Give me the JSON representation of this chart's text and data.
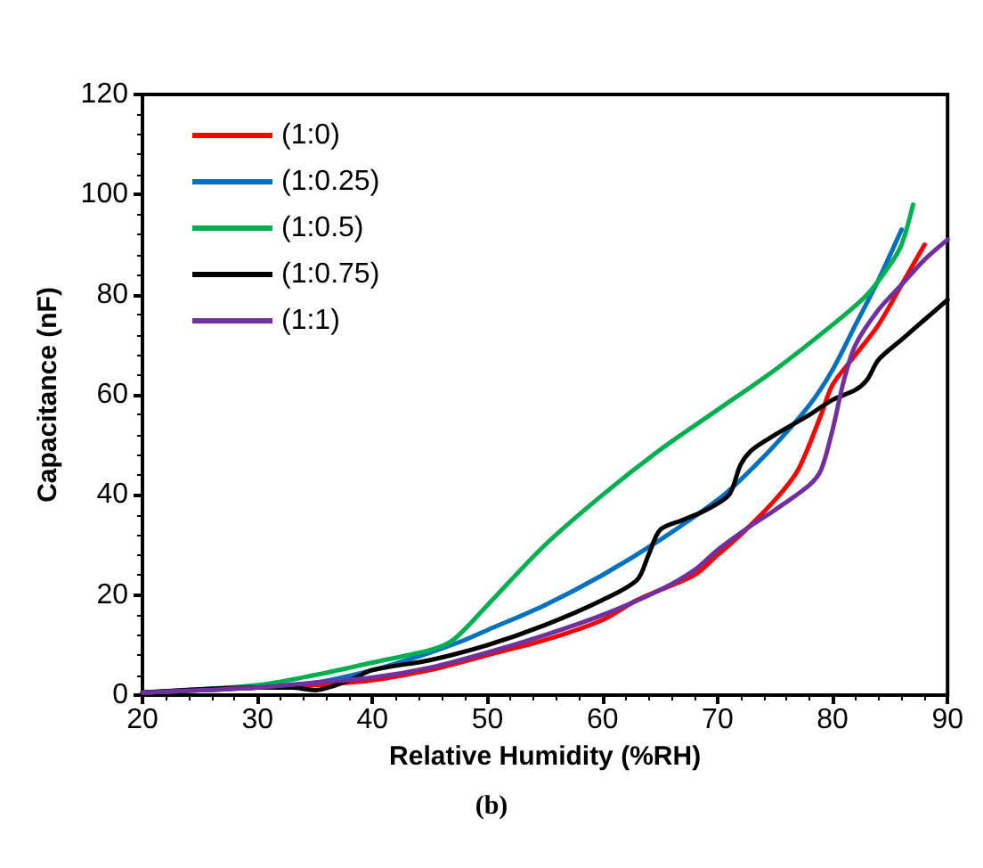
{
  "chart_data": {
    "type": "line",
    "xlabel": "Relative Humidity (%RH)",
    "ylabel": "Capacitance (nF)",
    "annotations": [
      "(b)"
    ],
    "xlim": [
      20,
      90
    ],
    "xticks": [
      20,
      30,
      40,
      50,
      60,
      70,
      80,
      90
    ],
    "ylim": [
      0,
      120
    ],
    "yticks": [
      0,
      20,
      40,
      60,
      80,
      100,
      120
    ],
    "grid": false,
    "legend": "top left",
    "line_style": "solid",
    "marker": "none",
    "series": [
      {
        "name": "(1:0)",
        "color": "#ff0000",
        "x": [
          20,
          30,
          35,
          40,
          45,
          50,
          55,
          60,
          63,
          65,
          68,
          70,
          72,
          75,
          77,
          79,
          80,
          82,
          84,
          86,
          88
        ],
        "values": [
          0.5,
          1.5,
          2,
          3,
          5,
          8,
          11,
          15,
          19,
          21,
          24,
          28,
          32,
          39,
          45,
          56,
          62,
          68,
          74,
          82,
          90
        ]
      },
      {
        "name": "(1:0.25)",
        "color": "#0070c0",
        "x": [
          20,
          30,
          35,
          40,
          45,
          48,
          50,
          55,
          60,
          65,
          70,
          72,
          75,
          78,
          80,
          82,
          84,
          86
        ],
        "values": [
          0.5,
          1.5,
          2.5,
          5,
          8.5,
          11,
          13,
          18,
          24,
          31,
          39,
          43,
          50,
          58,
          65,
          74,
          83,
          93
        ]
      },
      {
        "name": "(1:0.5)",
        "color": "#00b050",
        "x": [
          20,
          30,
          35,
          40,
          45,
          47,
          50,
          55,
          60,
          65,
          70,
          75,
          80,
          83,
          85,
          86,
          87
        ],
        "values": [
          0.5,
          2,
          4,
          6.5,
          9,
          11,
          18,
          30,
          40,
          49,
          57,
          65,
          74,
          80,
          86,
          90,
          98
        ]
      },
      {
        "name": "(1:0.75)",
        "color": "#000000",
        "x": [
          20,
          30,
          33,
          35,
          38,
          40,
          45,
          50,
          55,
          60,
          63,
          64,
          65,
          67,
          69,
          71,
          72,
          73,
          75,
          78,
          80,
          82,
          83,
          84,
          86,
          88,
          90
        ],
        "values": [
          0.5,
          1.5,
          1.5,
          1,
          3,
          5,
          7,
          10,
          14,
          19,
          23,
          28,
          33,
          35,
          37,
          40,
          46,
          49,
          52,
          56,
          59,
          61,
          63,
          67,
          71,
          75,
          79
        ]
      },
      {
        "name": "(1:1)",
        "color": "#7030a0",
        "x": [
          20,
          30,
          35,
          40,
          45,
          50,
          55,
          60,
          65,
          68,
          70,
          73,
          75,
          78,
          79,
          80,
          81,
          82,
          84,
          86,
          88,
          90
        ],
        "values": [
          0.5,
          1.5,
          2.5,
          3.5,
          5.5,
          8.5,
          12,
          16,
          21,
          25,
          29,
          34,
          37,
          42,
          45,
          53,
          63,
          70,
          77,
          82,
          87,
          91
        ]
      }
    ]
  }
}
